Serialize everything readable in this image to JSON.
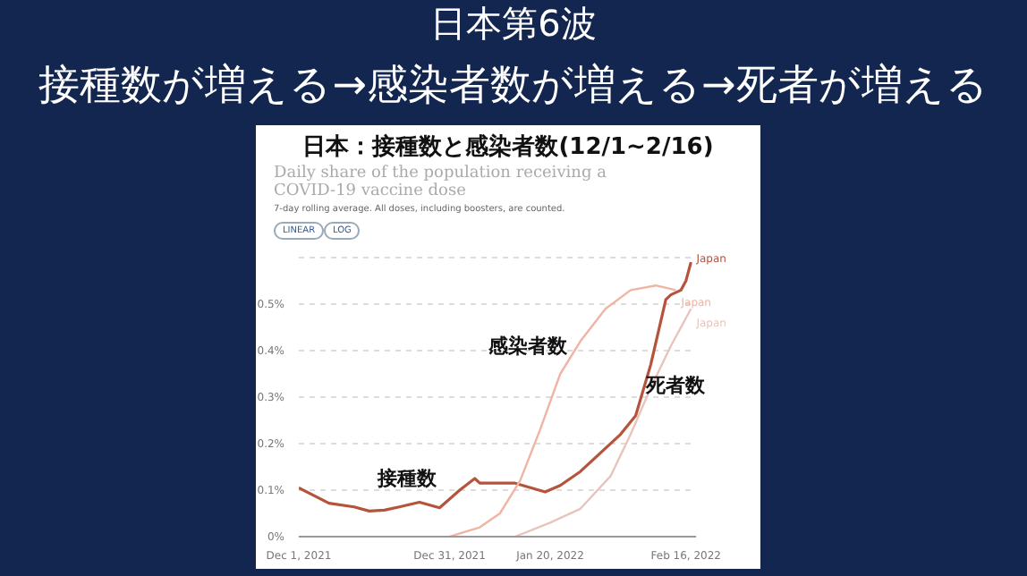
{
  "chart_data": {
    "type": "line",
    "title": "日本第6波",
    "subtitle": "接種数が増える→感染者数が増える→死者が増える",
    "annotations": [
      "日本：接種数と感染者数(12/1~2/16)",
      "Daily share of the population receiving a COVID-19 vaccine dose",
      "7-day rolling average. All doses, including boosters, are counted.",
      "LINEAR",
      "LOG",
      "接種数",
      "感染者数",
      "死者数"
    ],
    "series": [
      {
        "name": "Japan",
        "color": "#b5533c",
        "x": [
          "2021-12-01",
          "2021-12-07",
          "2021-12-12",
          "2021-12-15",
          "2021-12-18",
          "2021-12-21",
          "2021-12-25",
          "2021-12-29",
          "2022-01-02",
          "2022-01-05",
          "2022-01-06",
          "2022-01-13",
          "2022-01-19",
          "2022-01-22",
          "2022-01-26",
          "2022-01-30",
          "2022-02-03",
          "2022-02-06",
          "2022-02-09",
          "2022-02-12",
          "2022-02-13",
          "2022-02-15",
          "2022-02-16",
          "2022-02-17"
        ],
        "values": [
          0.105,
          0.072,
          0.064,
          0.055,
          0.057,
          0.064,
          0.074,
          0.062,
          0.1,
          0.125,
          0.115,
          0.115,
          0.096,
          0.11,
          0.14,
          0.18,
          0.22,
          0.26,
          0.37,
          0.51,
          0.52,
          0.53,
          0.55,
          0.59
        ]
      },
      {
        "name": "Japan",
        "color": "#f0b4a4",
        "x": [
          "2021-12-31",
          "2022-01-06",
          "2022-01-10",
          "2022-01-14",
          "2022-01-18",
          "2022-01-22",
          "2022-01-26",
          "2022-01-31",
          "2022-02-05",
          "2022-02-10",
          "2022-02-14"
        ],
        "values": [
          0,
          0.02,
          0.05,
          0.12,
          0.23,
          0.35,
          0.42,
          0.49,
          0.53,
          0.54,
          0.53
        ]
      },
      {
        "name": "Japan",
        "color": "#e8c4bc",
        "x": [
          "2022-01-13",
          "2022-01-20",
          "2022-01-26",
          "2022-02-01",
          "2022-02-05",
          "2022-02-09",
          "2022-02-13",
          "2022-02-17"
        ],
        "values": [
          0,
          0.03,
          0.06,
          0.13,
          0.22,
          0.32,
          0.41,
          0.49
        ]
      }
    ],
    "xlim": [
      "2021-12-01",
      "2022-02-18"
    ],
    "xticks": [
      {
        "value": "2021-12-01",
        "label": "Dec 1, 2021"
      },
      {
        "value": "2021-12-31",
        "label": "Dec 31, 2021"
      },
      {
        "value": "2022-01-20",
        "label": "Jan 20, 2022"
      },
      {
        "value": "2022-02-16",
        "label": "Feb 16, 2022"
      }
    ],
    "ylim": [
      0,
      0.6
    ],
    "yticks": [
      {
        "value": 0,
        "label": "0%"
      },
      {
        "value": 0.1,
        "label": "0.1%"
      },
      {
        "value": 0.2,
        "label": "0.2%"
      },
      {
        "value": 0.3,
        "label": "0.3%"
      },
      {
        "value": 0.4,
        "label": "0.4%"
      },
      {
        "value": 0.5,
        "label": "0.5%"
      }
    ],
    "tick_labels": "xy",
    "grid": "y",
    "marker": "none",
    "line_style": "solid",
    "legend": false
  }
}
